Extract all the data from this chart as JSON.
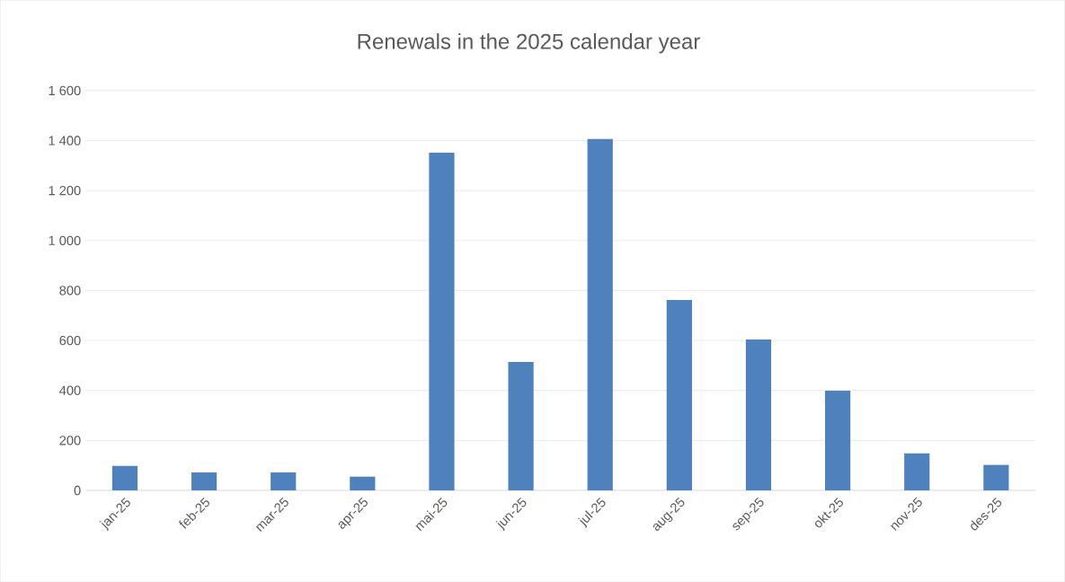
{
  "chart_data": {
    "type": "bar",
    "title": "Renewals in the 2025 calendar year",
    "categories": [
      "jan-25",
      "feb-25",
      "mar-25",
      "apr-25",
      "mai-25",
      "jun-25",
      "jul-25",
      "aug-25",
      "sep-25",
      "okt-25",
      "nov-25",
      "des-25"
    ],
    "values": [
      98,
      72,
      72,
      55,
      1352,
      514,
      1406,
      762,
      604,
      399,
      148,
      102
    ],
    "color": "#4f81bd",
    "ylim": [
      0,
      1600
    ],
    "yticks": [
      0,
      200,
      400,
      600,
      800,
      {
        "value": 1000,
        "label": "1 000"
      },
      {
        "value": 1200,
        "label": "1 200"
      },
      {
        "value": 1400,
        "label": "1 400"
      },
      {
        "value": 1600,
        "label": "1 600"
      }
    ],
    "grid": "y",
    "legend": false
  }
}
